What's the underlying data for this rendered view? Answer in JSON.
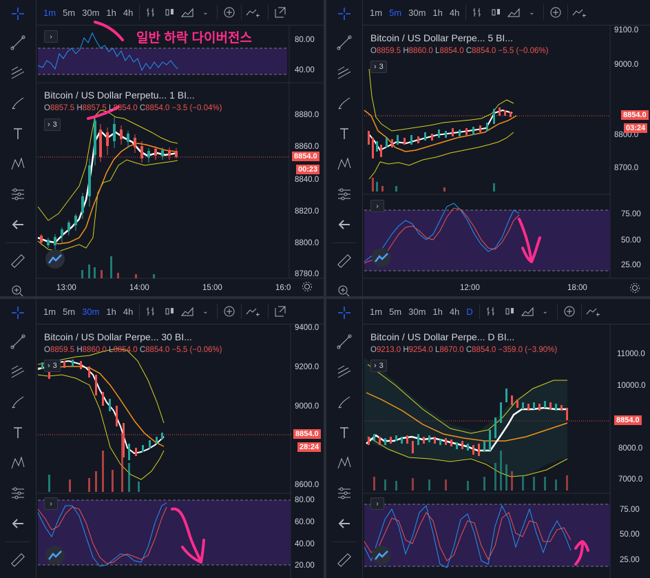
{
  "layout_note": "",
  "timeframes": [
    "1m",
    "5m",
    "30m",
    "1h",
    "4h"
  ],
  "annotation_text": "일반 하락 다이버전스",
  "panes": [
    {
      "id": "p1",
      "active_tf": "1m",
      "title": "Bitcoin / US Dollar Perpetu...   1   BI...",
      "ohlc": {
        "o": "8857.5",
        "h": "8857.5",
        "l": "8854.0",
        "c": "8854.0",
        "chg": "−3.5 (−0.04%)"
      },
      "ind_count": "3",
      "price_axis": [
        "8880.0",
        "8860.0",
        "8840.0",
        "8820.0",
        "8800.0",
        "8780.0"
      ],
      "osc_axis": [
        "80.00",
        "40.00"
      ],
      "time_axis": [
        "13:00",
        "14:00",
        "15:00",
        "16:0"
      ],
      "price_tag": "8854.0",
      "time_tag": "00:23"
    },
    {
      "id": "p2",
      "active_tf": "5m",
      "title": "Bitcoin / US Dollar Perpe...   5   BI...",
      "ohlc": {
        "o": "8859.5",
        "h": "8860.0",
        "l": "8854.0",
        "c": "8854.0",
        "chg": "−5.5 (−0.06%)"
      },
      "ind_count": "3",
      "price_axis": [
        "9100.0",
        "9000.0",
        "8800.0",
        "8700.0"
      ],
      "osc_axis": [
        "75.00",
        "50.00",
        "25.00"
      ],
      "time_axis": [
        "12:00",
        "18:00"
      ],
      "price_tag": "8854.0",
      "time_tag": "03:24"
    },
    {
      "id": "p3",
      "active_tf": "30m",
      "title": "Bitcoin / US Dollar Perpe...   30   BI...",
      "ohlc": {
        "o": "8859.5",
        "h": "8860.0",
        "l": "8854.0",
        "c": "8854.0",
        "chg": "−5.5 (−0.06%)"
      },
      "ind_count": "3",
      "price_axis": [
        "9400.0",
        "9200.0",
        "9000.0",
        "8600.0"
      ],
      "osc_axis": [
        "80.00",
        "60.00",
        "40.00",
        "20.00"
      ],
      "price_tag": "8854.0",
      "time_tag": "28:24"
    },
    {
      "id": "p4",
      "active_tf": "D",
      "title": "Bitcoin / US Dollar Perpe...   D   BI...",
      "ohlc": {
        "o": "9213.0",
        "h": "9254.0",
        "l": "8670.0",
        "c": "8854.0",
        "chg": "−359.0 (−3.90%)"
      },
      "ind_count": "3",
      "price_axis": [
        "11000.0",
        "10000.0",
        "8000.0",
        "7000.0"
      ],
      "osc_axis": [
        "75.00",
        "50.00",
        "25.00"
      ],
      "price_tag": "8854.0"
    }
  ],
  "p4_tfs": [
    "1m",
    "5m",
    "30m",
    "1h",
    "4h",
    "D"
  ]
}
